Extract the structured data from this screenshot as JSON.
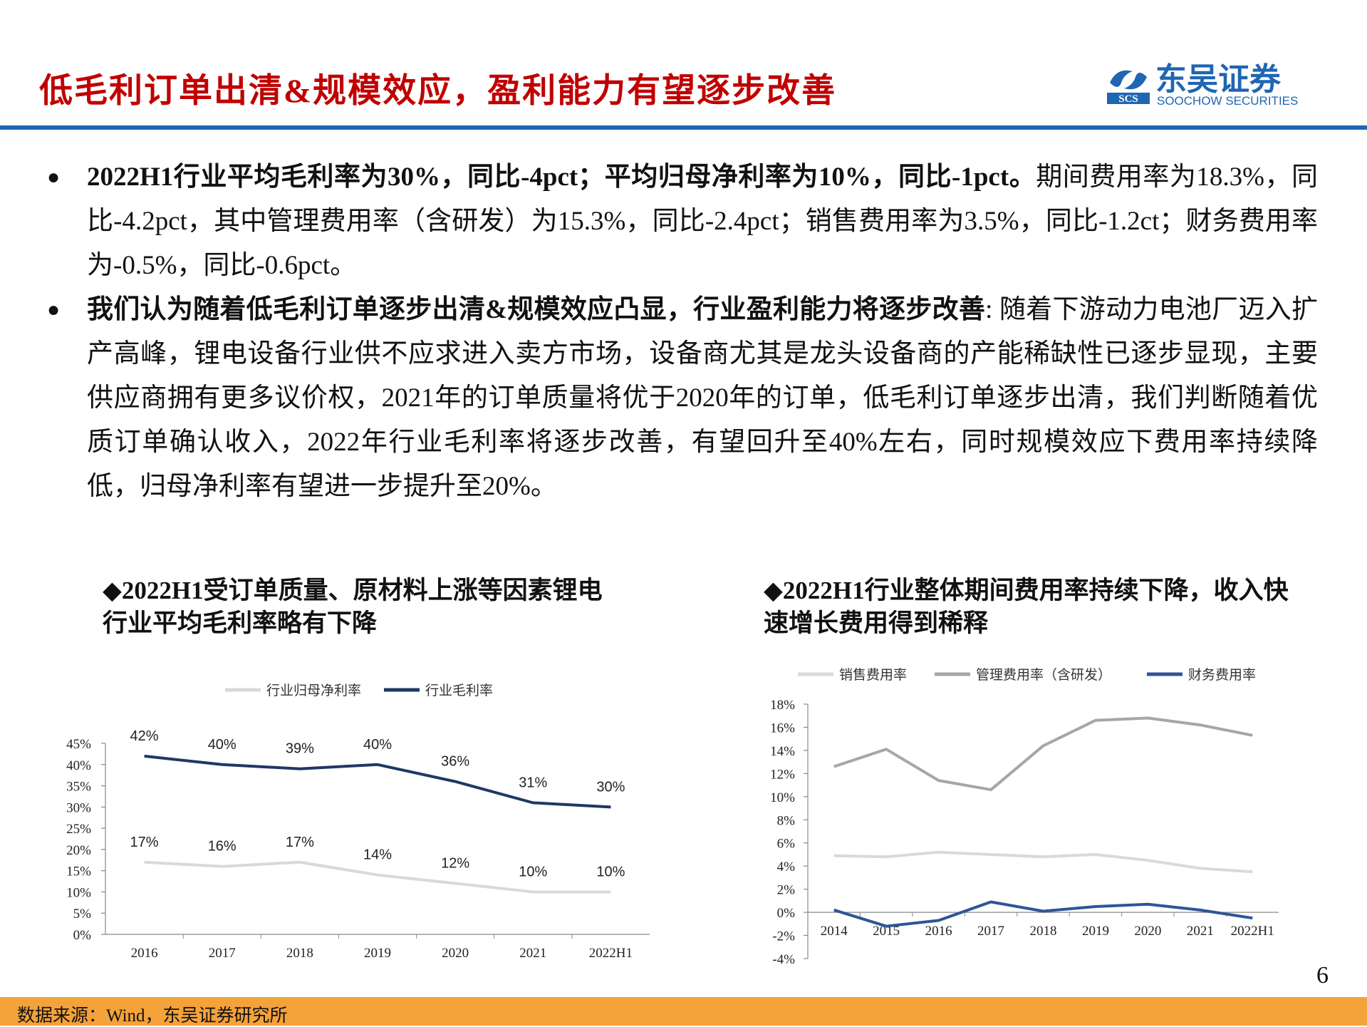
{
  "header": {
    "title": "低毛利订单出清&规模效应，盈利能力有望逐步改善",
    "logo_mark": "SCS",
    "logo_name": "东吴证券",
    "logo_en": "SOOCHOW SECURITIES"
  },
  "bullets": [
    {
      "bold": "2022H1行业平均毛利率为30%，同比-4pct；平均归母净利率为10%，同比-1pct。",
      "text": "期间费用率为18.3%，同比-4.2pct，其中管理费用率（含研发）为15.3%，同比-2.4pct；销售费用率为3.5%，同比-1.2ct；财务费用率为-0.5%，同比-0.6pct。"
    },
    {
      "bold": "我们认为随着低毛利订单逐步出清&规模效应凸显，行业盈利能力将逐步改善",
      "text": ": 随着下游动力电池厂迈入扩产高峰，锂电设备行业供不应求进入卖方市场，设备商尤其是龙头设备商的产能稀缺性已逐步显现，主要供应商拥有更多议价权，2021年的订单质量将优于2020年的订单，低毛利订单逐步出清，我们判断随着优质订单确认收入，2022年行业毛利率将逐步改善，有望回升至40%左右，同时规模效应下费用率持续降低，归母净利率有望进一步提升至20%。"
    }
  ],
  "chart_data": [
    {
      "type": "line",
      "title": "◆2022H1受订单质量、原材料上涨等因素锂电行业平均毛利率略有下降",
      "categories": [
        "2016",
        "2017",
        "2018",
        "2019",
        "2020",
        "2021",
        "2022H1"
      ],
      "series": [
        {
          "name": "行业归母净利率",
          "color": "#d9d9d9",
          "values": [
            17,
            16,
            17,
            14,
            12,
            10,
            10
          ],
          "value_labels": [
            "17%",
            "16%",
            "17%",
            "14%",
            "12%",
            "10%",
            "10%"
          ]
        },
        {
          "name": "行业毛利率",
          "color": "#1f3864",
          "values": [
            42,
            40,
            39,
            40,
            36,
            31,
            30
          ],
          "value_labels": [
            "42%",
            "40%",
            "39%",
            "40%",
            "36%",
            "31%",
            "30%"
          ]
        }
      ],
      "ylim": [
        0,
        45
      ],
      "yticks": [
        {
          "value": 0,
          "label": "0%"
        },
        {
          "value": 5,
          "label": "5%"
        },
        {
          "value": 10,
          "label": "10%"
        },
        {
          "value": 15,
          "label": "15%"
        },
        {
          "value": 20,
          "label": "20%"
        },
        {
          "value": 25,
          "label": "25%"
        },
        {
          "value": 30,
          "label": "30%"
        },
        {
          "value": 35,
          "label": "35%"
        },
        {
          "value": 40,
          "label": "40%"
        },
        {
          "value": 45,
          "label": "45%"
        }
      ]
    },
    {
      "type": "line",
      "title": "◆2022H1行业整体期间费用率持续下降，收入快速增长费用得到稀释",
      "categories": [
        "2014",
        "2015",
        "2016",
        "2017",
        "2018",
        "2019",
        "2020",
        "2021",
        "2022H1"
      ],
      "series": [
        {
          "name": "销售费用率",
          "color": "#d9d9d9",
          "values": [
            4.9,
            4.8,
            5.2,
            5.0,
            4.8,
            5.0,
            4.5,
            3.8,
            3.5
          ]
        },
        {
          "name": "管理费用率（含研发）",
          "color": "#a6a6a6",
          "values": [
            12.6,
            14.1,
            11.4,
            10.6,
            14.4,
            16.6,
            16.8,
            16.2,
            15.3
          ]
        },
        {
          "name": "财务费用率",
          "color": "#2f5597",
          "values": [
            0.2,
            -1.2,
            -0.7,
            0.9,
            0.1,
            0.5,
            0.7,
            0.2,
            -0.5
          ]
        }
      ],
      "ylim": [
        -4,
        18
      ],
      "yticks": [
        {
          "value": -4,
          "label": "-4%"
        },
        {
          "value": -2,
          "label": "-2%"
        },
        {
          "value": 0,
          "label": "0%"
        },
        {
          "value": 2,
          "label": "2%"
        },
        {
          "value": 4,
          "label": "4%"
        },
        {
          "value": 6,
          "label": "6%"
        },
        {
          "value": 8,
          "label": "8%"
        },
        {
          "value": 10,
          "label": "10%"
        },
        {
          "value": 12,
          "label": "12%"
        },
        {
          "value": 14,
          "label": "14%"
        },
        {
          "value": 16,
          "label": "16%"
        },
        {
          "value": 18,
          "label": "18%"
        }
      ]
    }
  ],
  "footer": {
    "source": "数据来源：Wind，东吴证券研究所",
    "page": "6"
  }
}
